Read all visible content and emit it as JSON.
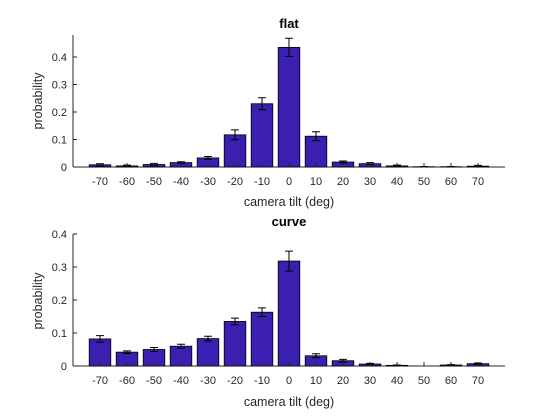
{
  "chart_data": [
    {
      "type": "bar",
      "title": "flat",
      "xlabel": "camera tilt (deg)",
      "ylabel": "probability",
      "ylim": [
        0,
        0.48
      ],
      "yticks": [
        0,
        0.1,
        0.2,
        0.3,
        0.4
      ],
      "ytick_labels": [
        "0",
        "0.1",
        "0.2",
        "0.3",
        "0.4"
      ],
      "categories": [
        "-70",
        "-60",
        "-50",
        "-40",
        "-30",
        "-20",
        "-10",
        "0",
        "10",
        "20",
        "30",
        "40",
        "50",
        "60",
        "70"
      ],
      "values": [
        0.008,
        0.004,
        0.009,
        0.016,
        0.033,
        0.117,
        0.23,
        0.435,
        0.112,
        0.018,
        0.012,
        0.004,
        0.001,
        0.001,
        0.003
      ],
      "errors": [
        0.004,
        0.003,
        0.004,
        0.003,
        0.005,
        0.018,
        0.022,
        0.033,
        0.016,
        0.004,
        0.004,
        0.003,
        0.001,
        0.001,
        0.003
      ],
      "color": "#3a1fb0",
      "grid": false
    },
    {
      "type": "bar",
      "title": "curve",
      "xlabel": "camera tilt (deg)",
      "ylabel": "probability",
      "ylim": [
        0,
        0.4
      ],
      "yticks": [
        0,
        0.1,
        0.2,
        0.3,
        0.4
      ],
      "ytick_labels": [
        "0",
        "0.1",
        "0.2",
        "0.3",
        "0.4"
      ],
      "categories": [
        "-70",
        "-60",
        "-50",
        "-40",
        "-30",
        "-20",
        "-10",
        "0",
        "10",
        "20",
        "30",
        "40",
        "50",
        "60",
        "70"
      ],
      "values": [
        0.082,
        0.042,
        0.05,
        0.06,
        0.083,
        0.135,
        0.163,
        0.318,
        0.031,
        0.016,
        0.006,
        0.002,
        0.0,
        0.003,
        0.007
      ],
      "errors": [
        0.01,
        0.004,
        0.006,
        0.006,
        0.007,
        0.01,
        0.013,
        0.03,
        0.006,
        0.004,
        0.002,
        0.001,
        0.0,
        0.001,
        0.002
      ],
      "color": "#3a1fb0",
      "grid": false
    }
  ]
}
